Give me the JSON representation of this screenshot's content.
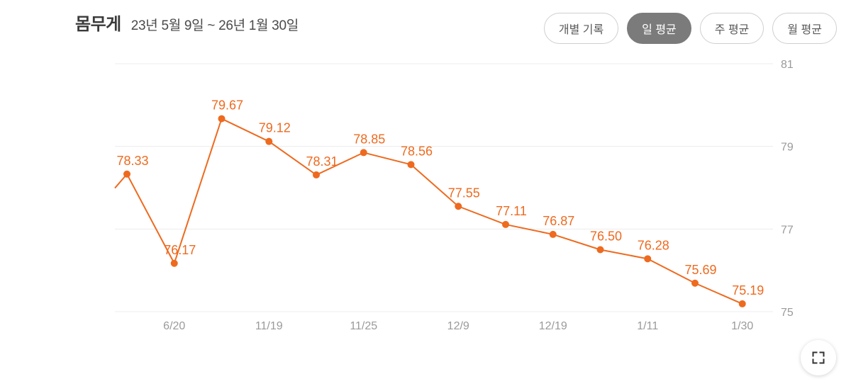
{
  "header": {
    "title": "몸무게",
    "date_range": "23년 5월 9일 ~ 26년 1월 30일"
  },
  "toggles": [
    {
      "label": "개별 기록",
      "active": false
    },
    {
      "label": "일 평균",
      "active": true
    },
    {
      "label": "주 평균",
      "active": false
    },
    {
      "label": "월 평균",
      "active": false
    }
  ],
  "colors": {
    "series": "#ee6a1f",
    "grid": "#ececec",
    "axis_text": "#9a9a9a",
    "active_toggle": "#7b7b7b"
  },
  "fullscreen_icon": "expand-icon",
  "chart_data": {
    "type": "line",
    "title": "",
    "xlabel": "",
    "ylabel": "",
    "ylim": [
      75,
      81
    ],
    "y_ticks": [
      75,
      77,
      79,
      81
    ],
    "y_axis_position": "right",
    "grid": true,
    "x_tick_labels": [
      "6/20",
      "11/19",
      "11/25",
      "12/9",
      "12/19",
      "1/11",
      "1/30"
    ],
    "series": [
      {
        "values": [
          78.33,
          76.17,
          79.67,
          79.12,
          78.31,
          78.85,
          78.56,
          77.55,
          77.11,
          76.87,
          76.5,
          76.28,
          75.69,
          75.19
        ],
        "labels": [
          "78.33",
          "76.17",
          "79.67",
          "79.12",
          "78.31",
          "78.85",
          "78.56",
          "77.55",
          "77.11",
          "76.87",
          "76.50",
          "76.28",
          "75.69",
          "75.19"
        ]
      }
    ]
  }
}
